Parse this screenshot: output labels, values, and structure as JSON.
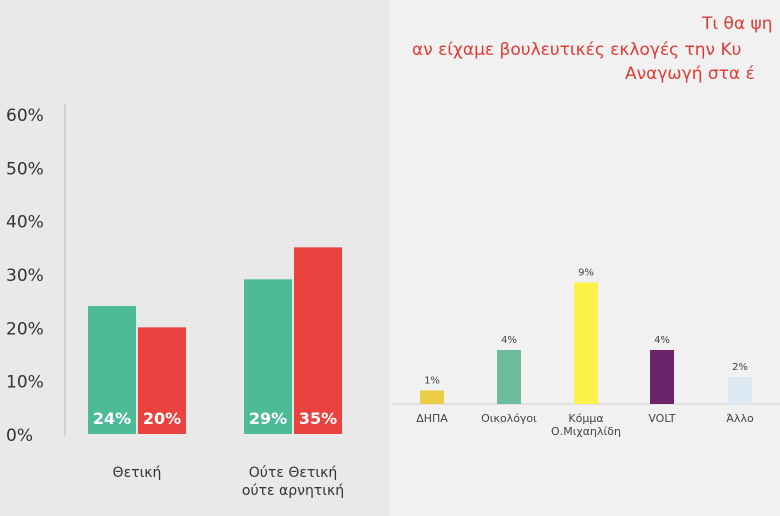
{
  "title_lines": [
    "Τι θα ψη",
    "αν είχαμε βουλευτικές εκλογές την Κυ",
    "Αναγωγή στα έ"
  ],
  "colors": {
    "left_bg": "#e9e9ea",
    "right_bg": "#f1f1f1",
    "title": "#e03a33",
    "positive": "#4dbb97",
    "neutral": "#e9423f",
    "axis_text": "#333333"
  },
  "chart_data": [
    {
      "type": "bar",
      "categories": [
        "Θετική",
        "Ούτε Θετική ούτε αρνητική"
      ],
      "category_lines": [
        [
          "Θετική"
        ],
        [
          "Ούτε Θετική",
          "ούτε αρνητική"
        ]
      ],
      "series": [
        {
          "values": [
            24,
            29
          ],
          "labels": [
            "24%",
            "29%"
          ],
          "color": "#4dbb97"
        },
        {
          "values": [
            20,
            35
          ],
          "labels": [
            "20%",
            "35%"
          ],
          "color": "#e9423f"
        }
      ],
      "yticks": [
        0,
        10,
        20,
        30,
        40,
        50,
        60
      ],
      "ytick_labels": [
        "0%",
        "10%",
        "20%",
        "30%",
        "40%",
        "50%",
        "60%"
      ],
      "ylim": [
        0,
        60
      ],
      "title": "",
      "xlabel": "",
      "ylabel": "",
      "grid": false
    },
    {
      "type": "bar",
      "categories": [
        "ΔΗΠΑ",
        "Οικολόγοι",
        "Κόμμα Ο.Μιχαηλίδη",
        "VOLT",
        "Άλλο"
      ],
      "category_lines": [
        [
          "ΔΗΠΑ"
        ],
        [
          "Οικολόγοι"
        ],
        [
          "Κόμμα",
          "Ο.Μιχαηλίδη"
        ],
        [
          "VOLT"
        ],
        [
          "Άλλο"
        ]
      ],
      "values": [
        1,
        4,
        9,
        4,
        2
      ],
      "labels": [
        "1%",
        "4%",
        "9%",
        "4%",
        "2%"
      ],
      "colors": [
        "#e8cd45",
        "#6dbd9c",
        "#fcf24a",
        "#6a2268",
        "#dce8f2"
      ],
      "ylim": [
        0,
        10
      ],
      "title": "",
      "xlabel": "",
      "ylabel": "",
      "grid": false
    }
  ]
}
